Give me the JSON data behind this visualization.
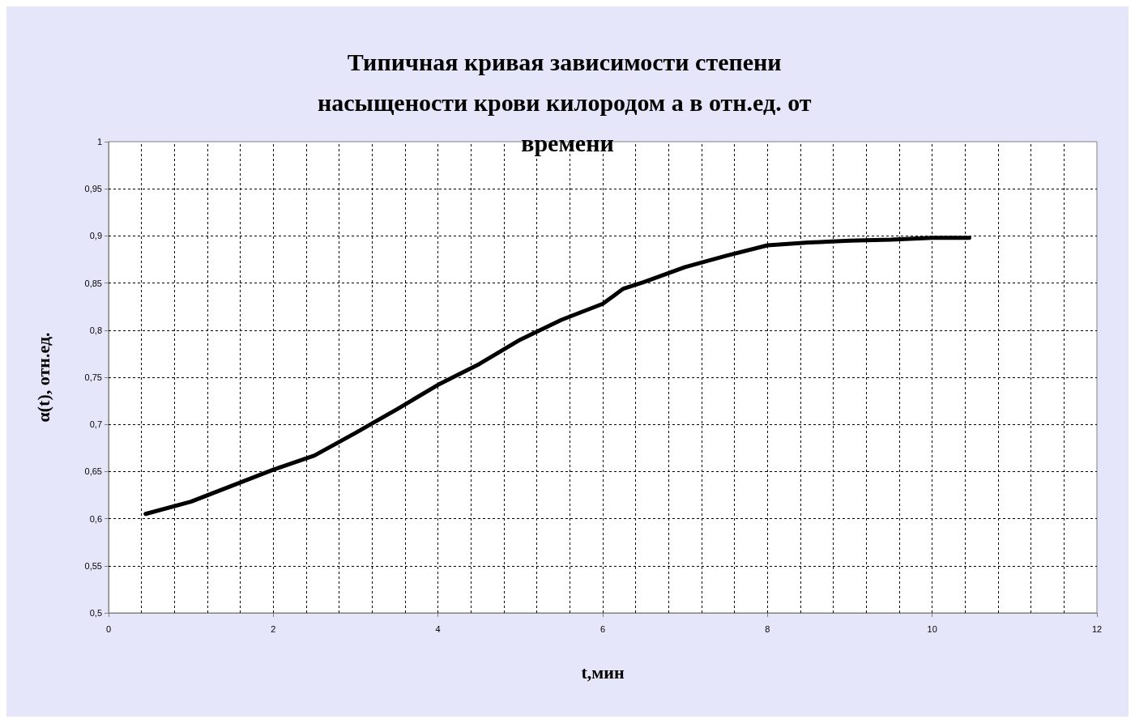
{
  "chart_data": {
    "type": "line",
    "title": "Типичная кривая зависимости степени насыщености крови килородом а в отн.ед. от времени",
    "xlabel": "t,мин",
    "ylabel": "α(t), отн.ед.",
    "x": [
      0.45,
      1.0,
      1.5,
      2.0,
      2.5,
      3.0,
      3.5,
      4.0,
      4.5,
      5.0,
      5.5,
      6.0,
      6.25,
      6.5,
      7.0,
      7.5,
      8.0,
      8.5,
      9.0,
      9.5,
      10.0,
      10.45
    ],
    "series": [
      {
        "color": "#000000",
        "values": [
          0.605,
          0.618,
          0.635,
          0.652,
          0.667,
          0.691,
          0.716,
          0.742,
          0.764,
          0.79,
          0.811,
          0.828,
          0.844,
          0.851,
          0.867,
          0.879,
          0.89,
          0.893,
          0.895,
          0.896,
          0.898,
          0.898
        ]
      }
    ],
    "xlim": [
      0,
      12
    ],
    "xticks": [
      0,
      {
        "value": 0.4,
        "label": null
      },
      {
        "value": 0.8,
        "label": null
      },
      {
        "value": 1.2,
        "label": null
      },
      {
        "value": 1.6,
        "label": null
      },
      2,
      {
        "value": 2.4,
        "label": null
      },
      {
        "value": 2.8,
        "label": null
      },
      {
        "value": 3.2,
        "label": null
      },
      {
        "value": 3.6,
        "label": null
      },
      4,
      {
        "value": 4.4,
        "label": null
      },
      {
        "value": 4.8,
        "label": null
      },
      {
        "value": 5.2,
        "label": null
      },
      {
        "value": 5.6,
        "label": null
      },
      6,
      {
        "value": 6.4,
        "label": null
      },
      {
        "value": 6.8,
        "label": null
      },
      {
        "value": 7.2,
        "label": null
      },
      {
        "value": 7.6,
        "label": null
      },
      8,
      {
        "value": 8.4,
        "label": null
      },
      {
        "value": 8.8,
        "label": null
      },
      {
        "value": 9.2,
        "label": null
      },
      {
        "value": 9.6,
        "label": null
      },
      10,
      {
        "value": 10.4,
        "label": null
      },
      {
        "value": 10.8,
        "label": null
      },
      {
        "value": 11.2,
        "label": null
      },
      {
        "value": 11.6,
        "label": null
      },
      12
    ],
    "ylim": [
      0.5,
      1
    ],
    "yticks": [
      {
        "value": 0.5,
        "label": "0,5"
      },
      {
        "value": 0.55,
        "label": "0,55"
      },
      {
        "value": 0.6,
        "label": "0,6"
      },
      {
        "value": 0.65,
        "label": "0,65"
      },
      {
        "value": 0.7,
        "label": "0,7"
      },
      {
        "value": 0.75,
        "label": "0,75"
      },
      {
        "value": 0.8,
        "label": "0,8"
      },
      {
        "value": 0.85,
        "label": "0,85"
      },
      {
        "value": 0.9,
        "label": "0,9"
      },
      {
        "value": 0.95,
        "label": "0,95"
      },
      1
    ],
    "grid": true,
    "marker": "none",
    "line_style": "solid"
  }
}
